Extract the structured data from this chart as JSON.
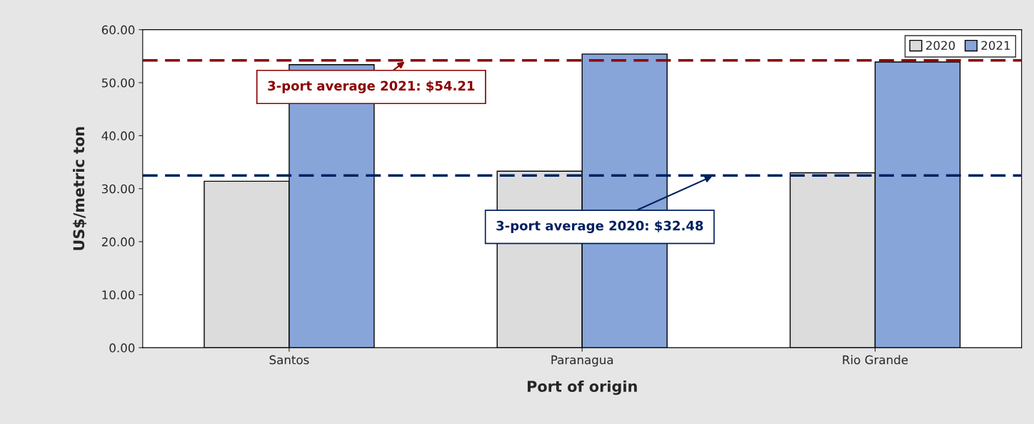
{
  "chart_data": {
    "type": "bar",
    "xlabel": "Port of origin",
    "ylabel": "US$/metric ton",
    "categories": [
      "Santos",
      "Paranagua",
      "Rio Grande"
    ],
    "series": [
      {
        "name": "2020",
        "color": "#dcdcdc",
        "values": [
          31.4,
          33.3,
          33.0
        ]
      },
      {
        "name": "2021",
        "color": "#87a5d9",
        "values": [
          53.4,
          55.4,
          53.9
        ]
      }
    ],
    "ylim": [
      0,
      60
    ],
    "yticks": [
      {
        "value": 0,
        "label": "0.00"
      },
      {
        "value": 10,
        "label": "10.00"
      },
      {
        "value": 20,
        "label": "20.00"
      },
      {
        "value": 30,
        "label": "30.00"
      },
      {
        "value": 40,
        "label": "40.00"
      },
      {
        "value": 50,
        "label": "50.00"
      },
      {
        "value": 60,
        "label": "60.00"
      }
    ],
    "ref_lines": [
      {
        "axis": "y",
        "value": 54.21,
        "label": "3-port average 2021: $54.21",
        "color": "#8b0000",
        "line_style": "dashed"
      },
      {
        "axis": "y",
        "value": 32.48,
        "label": "3-port average 2020: $32.48",
        "color": "#002060",
        "line_style": "dashed"
      }
    ],
    "grid": false,
    "legend": "top right"
  }
}
